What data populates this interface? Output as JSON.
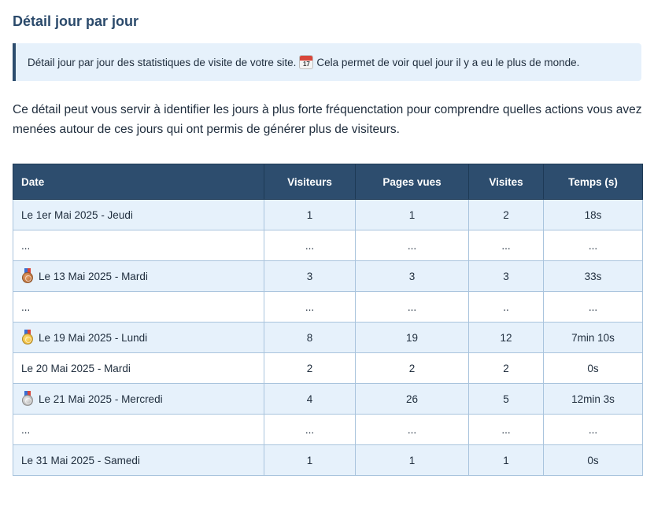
{
  "title": "Détail jour par jour",
  "callout": {
    "text_before": "Détail jour par jour des statistiques de visite de votre site.",
    "icon": "calendar-icon",
    "icon_day": "17",
    "text_after": "Cela permet de voir quel jour il y a eu le plus de monde."
  },
  "intro": "Ce détail peut vous servir à identifier les jours à plus forte fréquenctation pour comprendre quelles actions vous avez menées autour de ces jours qui ont permis de générer plus de visiteurs.",
  "table": {
    "headers": [
      "Date",
      "Visiteurs",
      "Pages vues",
      "Visites",
      "Temps (s)"
    ],
    "rows": [
      {
        "medal": "",
        "date": "Le 1er Mai 2025 - Jeudi",
        "visiteurs": "1",
        "pages": "1",
        "visites": "2",
        "temps": "18s"
      },
      {
        "medal": "",
        "date": "...",
        "visiteurs": "...",
        "pages": "...",
        "visites": "...",
        "temps": "..."
      },
      {
        "medal": "bronze",
        "date": "Le 13 Mai 2025 - Mardi",
        "visiteurs": "3",
        "pages": "3",
        "visites": "3",
        "temps": "33s"
      },
      {
        "medal": "",
        "date": "...",
        "visiteurs": "...",
        "pages": "...",
        "visites": "..",
        "temps": "..."
      },
      {
        "medal": "gold",
        "date": "Le 19 Mai 2025 - Lundi",
        "visiteurs": "8",
        "pages": "19",
        "visites": "12",
        "temps": "7min 10s"
      },
      {
        "medal": "",
        "date": "Le 20 Mai 2025 - Mardi",
        "visiteurs": "2",
        "pages": "2",
        "visites": "2",
        "temps": "0s"
      },
      {
        "medal": "silver",
        "date": "Le 21 Mai 2025 - Mercredi",
        "visiteurs": "4",
        "pages": "26",
        "visites": "5",
        "temps": "12min 3s"
      },
      {
        "medal": "",
        "date": "...",
        "visiteurs": "...",
        "pages": "...",
        "visites": "...",
        "temps": "..."
      },
      {
        "medal": "",
        "date": "Le 31 Mai 2025 - Samedi",
        "visiteurs": "1",
        "pages": "1",
        "visites": "1",
        "temps": "0s"
      }
    ]
  },
  "colors": {
    "header_bg": "#2d4d6e",
    "title": "#2b4a6b",
    "row_alt": "#e6f1fb",
    "border": "#a9c4dd"
  }
}
